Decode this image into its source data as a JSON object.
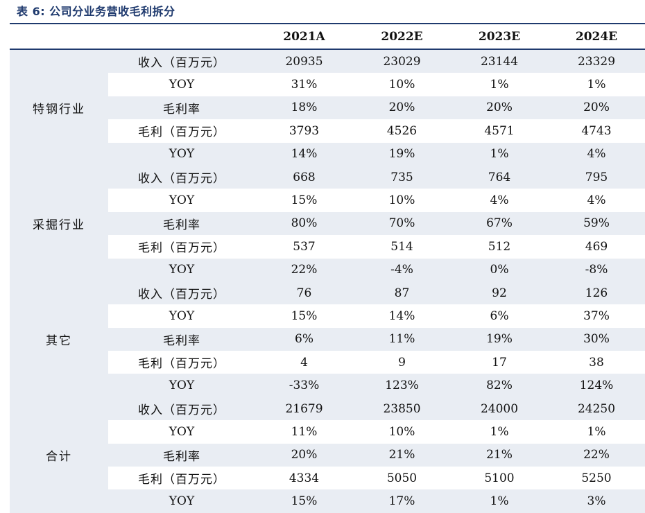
{
  "caption": "表 6: 公司分业务营收毛利拆分",
  "header": {
    "blank": "",
    "years": [
      "2021A",
      "2022E",
      "2023E",
      "2024E"
    ]
  },
  "groups": [
    {
      "name": "特钢行业",
      "rows": [
        {
          "metric": "收入（百万元）",
          "values": [
            "20935",
            "23029",
            "23144",
            "23329"
          ]
        },
        {
          "metric": "YOY",
          "values": [
            "31%",
            "10%",
            "1%",
            "1%"
          ]
        },
        {
          "metric": "毛利率",
          "values": [
            "18%",
            "20%",
            "20%",
            "20%"
          ]
        },
        {
          "metric": "毛利（百万元）",
          "values": [
            "3793",
            "4526",
            "4571",
            "4743"
          ]
        },
        {
          "metric": "YOY",
          "values": [
            "14%",
            "19%",
            "1%",
            "4%"
          ]
        }
      ]
    },
    {
      "name": "采掘行业",
      "rows": [
        {
          "metric": "收入（百万元）",
          "values": [
            "668",
            "735",
            "764",
            "795"
          ]
        },
        {
          "metric": "YOY",
          "values": [
            "15%",
            "10%",
            "4%",
            "4%"
          ]
        },
        {
          "metric": "毛利率",
          "values": [
            "80%",
            "70%",
            "67%",
            "59%"
          ]
        },
        {
          "metric": "毛利（百万元）",
          "values": [
            "537",
            "514",
            "512",
            "469"
          ]
        },
        {
          "metric": "YOY",
          "values": [
            "22%",
            "-4%",
            "0%",
            "-8%"
          ]
        }
      ]
    },
    {
      "name": "其它",
      "rows": [
        {
          "metric": "收入（百万元）",
          "values": [
            "76",
            "87",
            "92",
            "126"
          ]
        },
        {
          "metric": "YOY",
          "values": [
            "15%",
            "14%",
            "6%",
            "37%"
          ]
        },
        {
          "metric": "毛利率",
          "values": [
            "6%",
            "11%",
            "19%",
            "30%"
          ]
        },
        {
          "metric": "毛利（百万元）",
          "values": [
            "4",
            "9",
            "17",
            "38"
          ]
        },
        {
          "metric": "YOY",
          "values": [
            "-33%",
            "123%",
            "82%",
            "124%"
          ]
        }
      ]
    },
    {
      "name": "合计",
      "rows": [
        {
          "metric": "收入（百万元）",
          "values": [
            "21679",
            "23850",
            "24000",
            "24250"
          ]
        },
        {
          "metric": "YOY",
          "values": [
            "11%",
            "10%",
            "1%",
            "1%"
          ]
        },
        {
          "metric": "毛利率",
          "values": [
            "20%",
            "21%",
            "21%",
            "22%"
          ]
        },
        {
          "metric": "毛利（百万元）",
          "values": [
            "4334",
            "5050",
            "5100",
            "5250"
          ]
        },
        {
          "metric": "YOY",
          "values": [
            "15%",
            "17%",
            "1%",
            "3%"
          ]
        }
      ]
    }
  ],
  "colors": {
    "accent": "#1f3a6e",
    "shade": "#e9edf3"
  }
}
